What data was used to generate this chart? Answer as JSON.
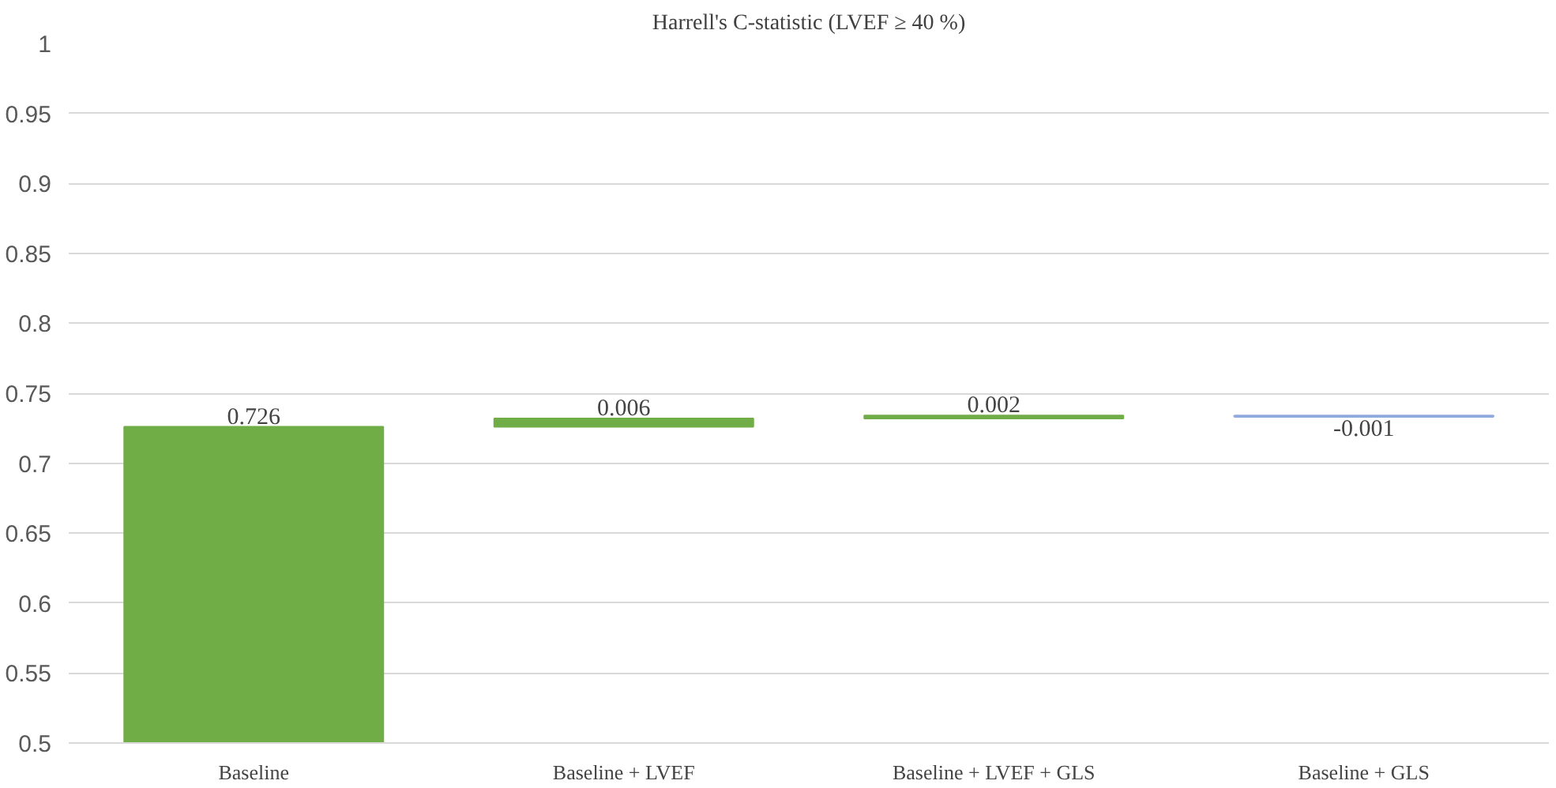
{
  "chart_data": {
    "type": "bar",
    "title": "Harrell's C-statistic (LVEF ≥ 40 %)",
    "categories": [
      "Baseline",
      "Baseline + LVEF",
      "Baseline + LVEF + GLS",
      "Baseline + GLS"
    ],
    "values": [
      0.726,
      0.006,
      0.002,
      -0.001
    ],
    "base": [
      0,
      0.726,
      0.732,
      0.734
    ],
    "colors": [
      "#70ad47",
      "#70ad47",
      "#70ad47",
      "#8faadc"
    ],
    "data_labels": true,
    "ylim": [
      0.5,
      1
    ],
    "yticks": [
      0.5,
      0.55,
      0.6,
      0.65,
      0.7,
      0.75,
      0.8,
      0.85,
      0.9,
      0.95,
      1
    ],
    "grid": "y"
  }
}
